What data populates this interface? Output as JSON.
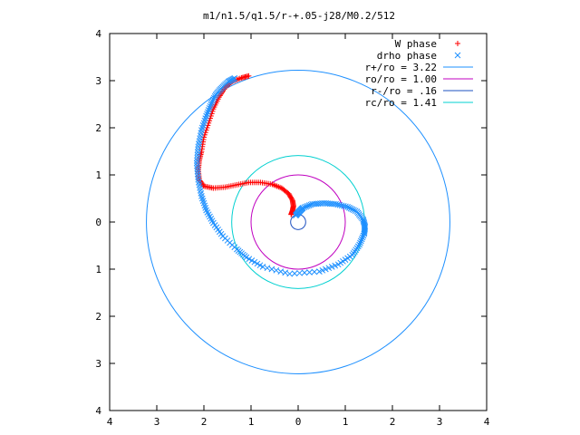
{
  "chart_data": {
    "type": "scatter",
    "title": "m1/n1.5/q1.5/r-+.05-j28/M0.2/512",
    "xlabel": "",
    "ylabel": "",
    "xlim": [
      -4,
      4
    ],
    "ylim": [
      -4,
      4
    ],
    "x_ticks": [
      -4,
      -3,
      -2,
      -1,
      0,
      1,
      2,
      3,
      4
    ],
    "y_ticks": [
      -4,
      -3,
      -2,
      -1,
      0,
      1,
      2,
      3,
      4
    ],
    "x_tick_labels": [
      "4",
      "3",
      "2",
      "1",
      "0",
      "1",
      "2",
      "3",
      "4"
    ],
    "y_tick_labels": [
      "4",
      "3",
      "2",
      "1",
      "0",
      "1",
      "2",
      "3",
      "4"
    ],
    "grid": false,
    "legend_position": "top-right",
    "series": [
      {
        "name": "W phase",
        "marker": "plus",
        "color": "#ff0000",
        "points": [
          [
            -0.15,
            0.16
          ],
          [
            -0.12,
            0.24
          ],
          [
            -0.1,
            0.34
          ],
          [
            -0.12,
            0.46
          ],
          [
            -0.2,
            0.6
          ],
          [
            -0.35,
            0.72
          ],
          [
            -0.55,
            0.8
          ],
          [
            -0.8,
            0.84
          ],
          [
            -1.05,
            0.84
          ],
          [
            -1.3,
            0.79
          ],
          [
            -1.55,
            0.74
          ],
          [
            -1.8,
            0.72
          ],
          [
            -2.0,
            0.76
          ],
          [
            -2.1,
            0.9
          ],
          [
            -2.12,
            1.1
          ],
          [
            -2.1,
            1.3
          ],
          [
            -2.05,
            1.5
          ],
          [
            -2.0,
            1.8
          ],
          [
            -1.9,
            2.1
          ],
          [
            -1.8,
            2.4
          ],
          [
            -1.68,
            2.65
          ],
          [
            -1.55,
            2.85
          ],
          [
            -1.4,
            2.98
          ],
          [
            -1.2,
            3.06
          ],
          [
            -1.05,
            3.1
          ]
        ]
      },
      {
        "name": "drho phase",
        "marker": "cross",
        "color": "#1e90ff",
        "points": [
          [
            -0.05,
            0.14
          ],
          [
            0.02,
            0.22
          ],
          [
            0.1,
            0.3
          ],
          [
            0.3,
            0.38
          ],
          [
            0.55,
            0.4
          ],
          [
            0.8,
            0.38
          ],
          [
            1.05,
            0.32
          ],
          [
            1.25,
            0.22
          ],
          [
            1.38,
            0.05
          ],
          [
            1.42,
            -0.1
          ],
          [
            1.4,
            -0.25
          ],
          [
            1.3,
            -0.48
          ],
          [
            1.15,
            -0.7
          ],
          [
            0.85,
            -0.9
          ],
          [
            0.45,
            -1.05
          ],
          [
            -0.18,
            -1.1
          ],
          [
            -0.75,
            -0.95
          ],
          [
            -1.1,
            -0.75
          ],
          [
            -1.3,
            -0.58
          ],
          [
            -1.6,
            -0.3
          ],
          [
            -1.8,
            -0.02
          ],
          [
            -1.95,
            0.25
          ],
          [
            -2.05,
            0.55
          ],
          [
            -2.12,
            0.9
          ],
          [
            -2.15,
            1.25
          ],
          [
            -2.12,
            1.6
          ],
          [
            -2.05,
            1.95
          ],
          [
            -1.95,
            2.25
          ],
          [
            -1.85,
            2.5
          ],
          [
            -1.75,
            2.7
          ],
          [
            -1.62,
            2.85
          ],
          [
            -1.48,
            2.98
          ],
          [
            -1.35,
            3.05
          ]
        ]
      },
      {
        "name": "r+/ro = 3.22",
        "type": "circle",
        "radius": 3.22,
        "color": "#1e90ff"
      },
      {
        "name": "ro/ro = 1.00",
        "type": "circle",
        "radius": 1.0,
        "color": "#c000c0"
      },
      {
        "name": "r-/ro = .16",
        "type": "circle",
        "radius": 0.16,
        "color": "#1e50c0"
      },
      {
        "name": "rc/ro = 1.41",
        "type": "circle",
        "radius": 1.41,
        "color": "#00d0d0"
      }
    ]
  }
}
